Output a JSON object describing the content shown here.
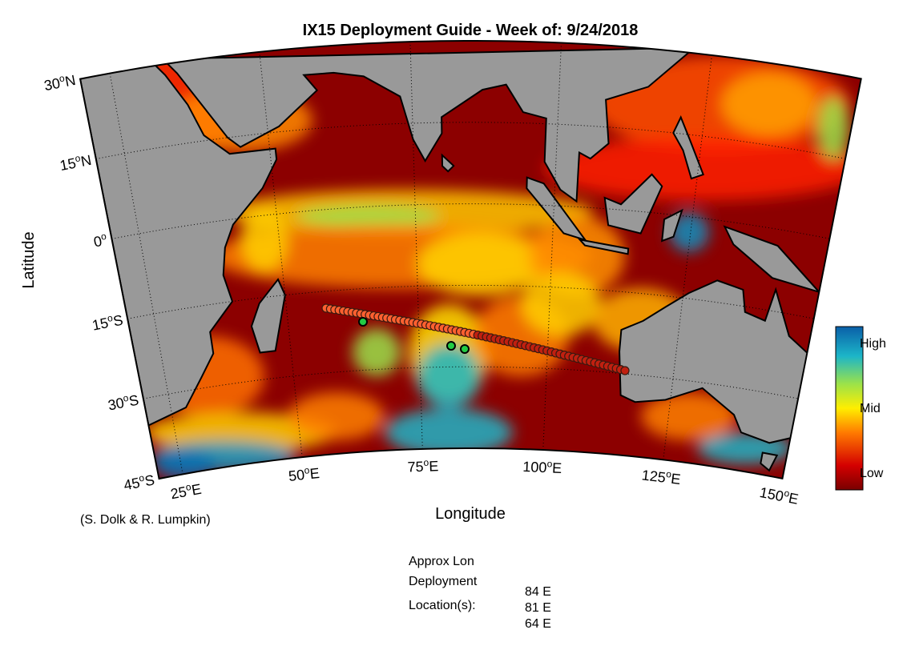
{
  "header": {
    "title": "IX15 Deployment Guide - Week of: 9/24/2018"
  },
  "map": {
    "y_label": "Latitude",
    "x_label": "Longitude",
    "lat_ticks": [
      {
        "value": 30,
        "deg": "30",
        "sup": "o",
        "hemi": "N"
      },
      {
        "value": 15,
        "deg": "15",
        "sup": "o",
        "hemi": "N"
      },
      {
        "value": 0,
        "deg": "0",
        "sup": "o",
        "hemi": ""
      },
      {
        "value": -15,
        "deg": "15",
        "sup": "o",
        "hemi": "S"
      },
      {
        "value": -30,
        "deg": "30",
        "sup": "o",
        "hemi": "S"
      },
      {
        "value": -45,
        "deg": "45",
        "sup": "o",
        "hemi": "S"
      }
    ],
    "lon_ticks": [
      {
        "value": 25,
        "deg": "25",
        "sup": "o",
        "hemi": "E"
      },
      {
        "value": 50,
        "deg": "50",
        "sup": "o",
        "hemi": "E"
      },
      {
        "value": 75,
        "deg": "75",
        "sup": "o",
        "hemi": "E"
      },
      {
        "value": 100,
        "deg": "100",
        "sup": "o",
        "hemi": "E"
      },
      {
        "value": 125,
        "deg": "125",
        "sup": "o",
        "hemi": "E"
      },
      {
        "value": 150,
        "deg": "150",
        "sup": "o",
        "hemi": "E"
      }
    ],
    "colorbar": {
      "high": "High",
      "mid": "Mid",
      "low": "Low"
    }
  },
  "footer": {
    "credit": "(S. Dolk & R. Lumpkin)",
    "approx": "Approx Lon",
    "deployment": "Deployment",
    "locations": "Location(s):",
    "longitudes": [
      "84 E",
      "81 E",
      "64 E"
    ]
  }
}
